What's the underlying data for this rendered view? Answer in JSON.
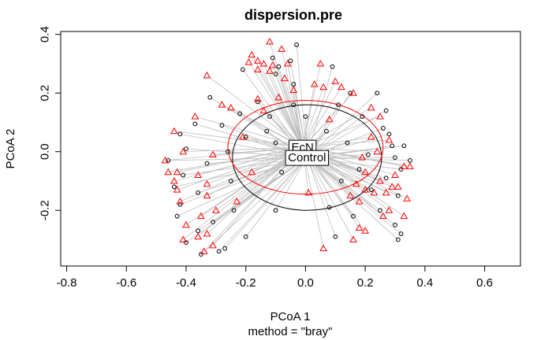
{
  "chart_data": {
    "type": "scatter",
    "title": "dispersion.pre",
    "xlabel": "PCoA 1",
    "ylabel": "PCoA 2",
    "subtitle": "method = \"bray\"",
    "xlim": [
      -0.82,
      0.72
    ],
    "ylim": [
      -0.39,
      0.41
    ],
    "x_ticks": [
      -0.8,
      -0.6,
      -0.4,
      -0.2,
      0.0,
      0.2,
      0.4,
      0.6
    ],
    "x_tick_labels": [
      "-0.8",
      "-0.6",
      "-0.4",
      "-0.2",
      "0.0",
      "0.2",
      "0.4",
      "0.6"
    ],
    "y_ticks": [
      -0.2,
      0.0,
      0.2,
      0.4
    ],
    "y_tick_labels": [
      "-0.2",
      "0.0",
      "0.2",
      "0.4"
    ],
    "grid": false,
    "box": true,
    "segment_color": "#bebebe",
    "centroid_labels": [
      {
        "label": "EcN",
        "x": -0.01,
        "y": 0.015
      },
      {
        "label": "Control",
        "x": 0.005,
        "y": -0.02
      }
    ],
    "groups": [
      {
        "name": "Control",
        "marker": "circle",
        "color": "#000000",
        "centroid": [
          0.005,
          -0.02
        ],
        "ellipse": {
          "cx": 0.005,
          "cy": -0.02,
          "rx": 0.25,
          "ry": 0.18
        },
        "points": [
          [
            -0.03,
            0.365
          ],
          [
            -0.11,
            0.32
          ],
          [
            -0.05,
            0.31
          ],
          [
            -0.09,
            0.29
          ],
          [
            0.09,
            0.29
          ],
          [
            -0.21,
            0.28
          ],
          [
            -0.1,
            0.265
          ],
          [
            -0.04,
            0.23
          ],
          [
            0.15,
            0.2
          ],
          [
            0.24,
            0.2
          ],
          [
            -0.32,
            0.185
          ],
          [
            -0.16,
            0.17
          ],
          [
            -0.04,
            0.16
          ],
          [
            0.11,
            0.16
          ],
          [
            0.27,
            0.14
          ],
          [
            -0.22,
            0.13
          ],
          [
            -0.12,
            0.12
          ],
          [
            0.0,
            0.12
          ],
          [
            0.19,
            0.12
          ],
          [
            -0.37,
            0.095
          ],
          [
            -0.28,
            0.09
          ],
          [
            -0.13,
            0.07
          ],
          [
            0.07,
            0.07
          ],
          [
            0.26,
            0.08
          ],
          [
            0.28,
            0.06
          ],
          [
            -0.42,
            0.06
          ],
          [
            -0.2,
            0.05
          ],
          [
            -0.1,
            0.03
          ],
          [
            0.14,
            0.03
          ],
          [
            0.29,
            0.02
          ],
          [
            0.33,
            0.02
          ],
          [
            -0.4,
            0.01
          ],
          [
            -0.26,
            0.0
          ],
          [
            0.03,
            0.0
          ],
          [
            0.21,
            -0.01
          ],
          [
            0.3,
            -0.02
          ],
          [
            0.35,
            -0.03
          ],
          [
            -0.46,
            -0.03
          ],
          [
            -0.33,
            -0.04
          ],
          [
            -0.08,
            -0.07
          ],
          [
            0.18,
            -0.06
          ],
          [
            0.32,
            -0.06
          ],
          [
            -0.41,
            -0.08
          ],
          [
            -0.25,
            -0.1
          ],
          [
            0.12,
            -0.1
          ],
          [
            0.27,
            -0.09
          ],
          [
            -0.44,
            -0.12
          ],
          [
            -0.36,
            -0.14
          ],
          [
            0.22,
            -0.13
          ],
          [
            0.31,
            -0.15
          ],
          [
            -0.42,
            -0.18
          ],
          [
            -0.24,
            -0.2
          ],
          [
            -0.1,
            -0.2
          ],
          [
            0.08,
            -0.19
          ],
          [
            0.25,
            -0.2
          ],
          [
            -0.43,
            -0.22
          ],
          [
            -0.31,
            -0.24
          ],
          [
            0.16,
            -0.22
          ],
          [
            0.3,
            -0.25
          ],
          [
            -0.36,
            -0.27
          ],
          [
            -0.2,
            -0.29
          ],
          [
            0.1,
            -0.29
          ],
          [
            0.32,
            -0.28
          ],
          [
            -0.4,
            -0.31
          ],
          [
            -0.27,
            -0.33
          ],
          [
            -0.35,
            -0.35
          ],
          [
            0.31,
            -0.3
          ],
          [
            -0.29,
            -0.34
          ]
        ]
      },
      {
        "name": "EcN",
        "marker": "triangle",
        "color": "#ff0000",
        "centroid": [
          -0.01,
          0.015
        ],
        "ellipse": {
          "cx": 0.0,
          "cy": 0.015,
          "rx": 0.26,
          "ry": 0.16
        },
        "points": [
          [
            -0.12,
            0.375
          ],
          [
            -0.08,
            0.35
          ],
          [
            -0.18,
            0.33
          ],
          [
            -0.16,
            0.31
          ],
          [
            -0.19,
            0.305
          ],
          [
            -0.06,
            0.3
          ],
          [
            -0.14,
            0.3
          ],
          [
            0.05,
            0.3
          ],
          [
            -0.11,
            0.295
          ],
          [
            -0.16,
            0.28
          ],
          [
            -0.12,
            0.275
          ],
          [
            -0.33,
            0.26
          ],
          [
            -0.07,
            0.25
          ],
          [
            0.1,
            0.24
          ],
          [
            0.03,
            0.23
          ],
          [
            0.06,
            0.22
          ],
          [
            0.12,
            0.22
          ],
          [
            -0.04,
            0.21
          ],
          [
            0.16,
            0.2
          ],
          [
            -0.09,
            0.185
          ],
          [
            -0.16,
            0.18
          ],
          [
            -0.28,
            0.16
          ],
          [
            -0.25,
            0.15
          ],
          [
            0.22,
            0.15
          ],
          [
            -0.14,
            0.14
          ],
          [
            0.25,
            0.12
          ],
          [
            -0.37,
            0.12
          ],
          [
            0.08,
            0.11
          ],
          [
            -0.44,
            0.07
          ],
          [
            -0.21,
            0.05
          ],
          [
            0.22,
            0.05
          ],
          [
            0.28,
            0.04
          ],
          [
            -0.41,
            0.0
          ],
          [
            -0.31,
            -0.01
          ],
          [
            0.24,
            0.0
          ],
          [
            -0.47,
            -0.03
          ],
          [
            0.19,
            -0.02
          ],
          [
            0.33,
            -0.05
          ],
          [
            0.35,
            -0.05
          ],
          [
            -0.46,
            -0.07
          ],
          [
            -0.43,
            -0.07
          ],
          [
            -0.36,
            -0.08
          ],
          [
            -0.18,
            -0.07
          ],
          [
            0.2,
            -0.07
          ],
          [
            0.3,
            -0.08
          ],
          [
            -0.44,
            -0.1
          ],
          [
            -0.33,
            -0.11
          ],
          [
            0.17,
            -0.11
          ],
          [
            0.25,
            -0.1
          ],
          [
            0.29,
            -0.12
          ],
          [
            -0.43,
            -0.13
          ],
          [
            0.01,
            -0.14
          ],
          [
            0.2,
            -0.13
          ],
          [
            0.31,
            -0.12
          ],
          [
            -0.33,
            -0.15
          ],
          [
            0.15,
            -0.15
          ],
          [
            0.23,
            -0.14
          ],
          [
            0.27,
            -0.14
          ],
          [
            -0.42,
            -0.17
          ],
          [
            0.34,
            -0.16
          ],
          [
            -0.23,
            -0.17
          ],
          [
            0.18,
            -0.17
          ],
          [
            -0.3,
            -0.2
          ],
          [
            0.28,
            -0.2
          ],
          [
            0.26,
            -0.22
          ],
          [
            -0.35,
            -0.22
          ],
          [
            0.33,
            -0.22
          ],
          [
            -0.4,
            -0.25
          ],
          [
            -0.33,
            -0.28
          ],
          [
            0.18,
            -0.26
          ],
          [
            0.2,
            -0.27
          ],
          [
            -0.36,
            -0.29
          ],
          [
            -0.41,
            -0.3
          ],
          [
            0.16,
            -0.3
          ],
          [
            -0.34,
            -0.34
          ],
          [
            0.06,
            -0.33
          ],
          [
            -0.31,
            -0.32
          ]
        ]
      }
    ]
  }
}
